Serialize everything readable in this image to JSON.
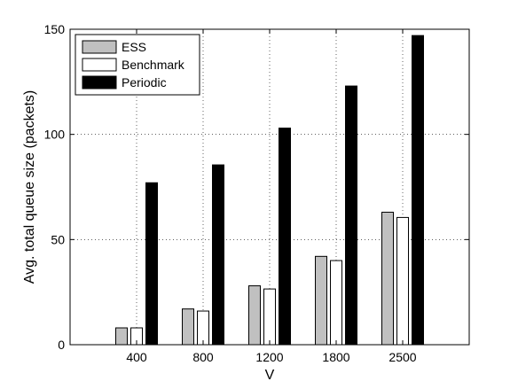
{
  "chart_data": {
    "type": "bar",
    "title": "",
    "xlabel": "V",
    "ylabel": "Avg. total queue size (packets)",
    "categories": [
      "400",
      "800",
      "1200",
      "1800",
      "2500"
    ],
    "ylim": [
      0,
      150
    ],
    "yticks": [
      0,
      50,
      100,
      150
    ],
    "grid": true,
    "legend_position": "top-left",
    "series": [
      {
        "name": "ESS",
        "color": "#c0c0c0",
        "values": [
          8,
          17,
          28,
          42,
          63
        ]
      },
      {
        "name": "Benchmark",
        "color": "#ffffff",
        "values": [
          8,
          16,
          26.5,
          40,
          60.5
        ]
      },
      {
        "name": "Periodic",
        "color": "#000000",
        "values": [
          77,
          85.5,
          103,
          123,
          147
        ]
      }
    ]
  }
}
